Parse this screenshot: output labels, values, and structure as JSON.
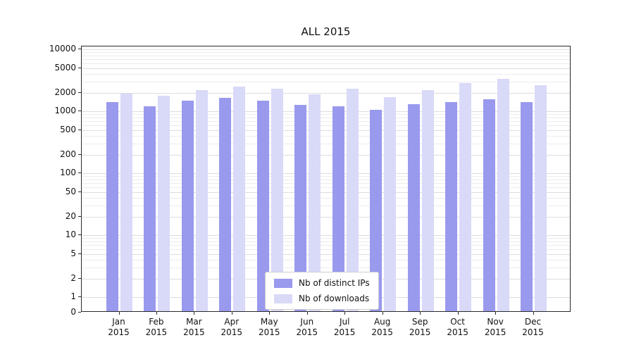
{
  "chart_data": {
    "type": "bar",
    "title": "ALL 2015",
    "categories": [
      "Jan",
      "Feb",
      "Mar",
      "Apr",
      "May",
      "Jun",
      "Jul",
      "Aug",
      "Sep",
      "Oct",
      "Nov",
      "Dec"
    ],
    "category_year": "2015",
    "series": [
      {
        "name": "Nb of distinct IPs",
        "color": "#9999ee",
        "values": [
          1350,
          1150,
          1400,
          1550,
          1400,
          1200,
          1150,
          1000,
          1250,
          1350,
          1500,
          1350
        ]
      },
      {
        "name": "Nb of downloads",
        "color": "#d9d9f8",
        "values": [
          1850,
          1700,
          2100,
          2350,
          2200,
          1800,
          2200,
          1600,
          2100,
          2700,
          3200,
          2500
        ]
      }
    ],
    "yticks": [
      0,
      1,
      2,
      5,
      10,
      20,
      50,
      100,
      200,
      500,
      1000,
      2000,
      5000,
      10000
    ],
    "yscale": "symlog",
    "ylim": [
      0,
      13000
    ],
    "xlabel": "",
    "ylabel": "",
    "grid": true,
    "legend_position": "lower center"
  }
}
